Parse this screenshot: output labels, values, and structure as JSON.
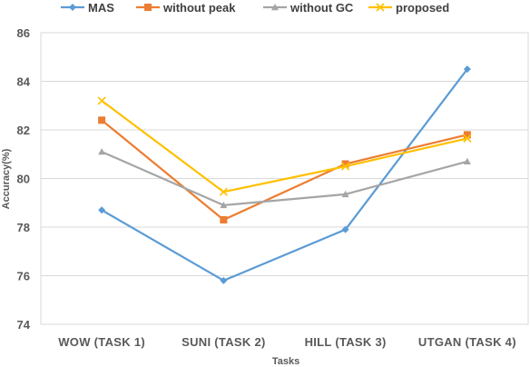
{
  "chart_data": {
    "type": "line",
    "title": "",
    "xlabel": "Tasks",
    "ylabel": "Accuracy(%)",
    "ylim": [
      74,
      86
    ],
    "yticks": [
      74,
      76,
      78,
      80,
      82,
      84,
      86
    ],
    "grid": "horizontal",
    "legend_position": "top",
    "categories": [
      "WOW (TASK 1)",
      "SUNI (TASK 2)",
      "HILL (TASK 3)",
      "UTGAN (TASK 4)"
    ],
    "series": [
      {
        "name": "MAS",
        "color": "#5b9bd5",
        "marker": "diamond",
        "values": [
          78.7,
          75.8,
          77.9,
          84.5
        ]
      },
      {
        "name": "without peak",
        "color": "#ed7d31",
        "marker": "square",
        "values": [
          82.4,
          78.3,
          80.6,
          81.8
        ]
      },
      {
        "name": "without GC",
        "color": "#a5a5a5",
        "marker": "triangle",
        "values": [
          81.1,
          78.9,
          79.35,
          80.7
        ]
      },
      {
        "name": "proposed",
        "color": "#ffc000",
        "marker": "x",
        "values": [
          83.2,
          79.45,
          80.5,
          81.65
        ]
      }
    ]
  }
}
